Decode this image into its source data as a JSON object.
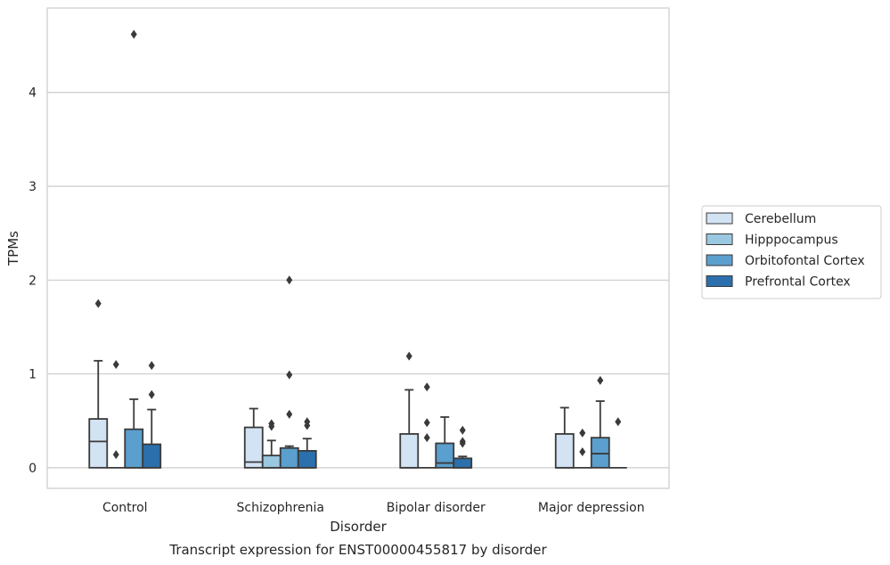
{
  "chart_data": {
    "type": "box",
    "caption": "Transcript expression for ENST00000455817 by disorder",
    "xlabel": "Disorder",
    "ylabel": "TPMs",
    "ylim": [
      -0.22,
      4.9
    ],
    "yticks": [
      0,
      1,
      2,
      3,
      4
    ],
    "grid": "horizontal",
    "legend_position": "right",
    "categories": [
      "Control",
      "Schizophrenia",
      "Bipolar disorder",
      "Major depression"
    ],
    "series": [
      {
        "name": "Cerebellum",
        "color": "#d2e3f3",
        "boxes": [
          {
            "q1": 0,
            "median": 0.28,
            "q3": 0.52,
            "whisker_low": 0,
            "whisker_high": 1.14,
            "outliers": [
              1.75
            ]
          },
          {
            "q1": 0,
            "median": 0.06,
            "q3": 0.43,
            "whisker_low": 0,
            "whisker_high": 0.63,
            "outliers": []
          },
          {
            "q1": 0,
            "median": 0,
            "q3": 0.36,
            "whisker_low": 0,
            "whisker_high": 0.83,
            "outliers": [
              1.19
            ]
          },
          {
            "q1": 0,
            "median": 0,
            "q3": 0.36,
            "whisker_low": 0,
            "whisker_high": 0.64,
            "outliers": []
          }
        ]
      },
      {
        "name": "Hipppocampus",
        "color": "#9ac8e0",
        "boxes": [
          {
            "q1": 0,
            "median": 0,
            "q3": 0,
            "whisker_low": 0,
            "whisker_high": 0,
            "outliers": [
              0.14,
              1.1
            ]
          },
          {
            "q1": 0,
            "median": 0,
            "q3": 0.13,
            "whisker_low": 0,
            "whisker_high": 0.29,
            "outliers": [
              0.44,
              0.47
            ]
          },
          {
            "q1": 0,
            "median": 0,
            "q3": 0,
            "whisker_low": 0,
            "whisker_high": 0,
            "outliers": [
              0.32,
              0.48,
              0.86
            ]
          },
          {
            "q1": 0,
            "median": 0,
            "q3": 0,
            "whisker_low": 0,
            "whisker_high": 0,
            "outliers": [
              0.17,
              0.37
            ]
          }
        ]
      },
      {
        "name": "Orbitofontal Cortex",
        "color": "#5a9fcd",
        "boxes": [
          {
            "q1": 0,
            "median": 0,
            "q3": 0.41,
            "whisker_low": 0,
            "whisker_high": 0.73,
            "outliers": [
              4.62
            ]
          },
          {
            "q1": 0,
            "median": 0,
            "q3": 0.21,
            "whisker_low": 0,
            "whisker_high": 0.23,
            "outliers": [
              0.57,
              0.99,
              2.0
            ]
          },
          {
            "q1": 0,
            "median": 0.05,
            "q3": 0.26,
            "whisker_low": 0,
            "whisker_high": 0.54,
            "outliers": []
          },
          {
            "q1": 0,
            "median": 0.15,
            "q3": 0.32,
            "whisker_low": 0,
            "whisker_high": 0.71,
            "outliers": [
              0.93
            ]
          }
        ]
      },
      {
        "name": "Prefrontal Cortex",
        "color": "#2c6fad",
        "boxes": [
          {
            "q1": 0,
            "median": 0,
            "q3": 0.25,
            "whisker_low": 0,
            "whisker_high": 0.62,
            "outliers": [
              0.78,
              1.09
            ]
          },
          {
            "q1": 0,
            "median": 0,
            "q3": 0.18,
            "whisker_low": 0,
            "whisker_high": 0.31,
            "outliers": [
              0.45,
              0.49
            ]
          },
          {
            "q1": 0,
            "median": 0,
            "q3": 0.1,
            "whisker_low": 0,
            "whisker_high": 0.12,
            "outliers": [
              0.26,
              0.28,
              0.4
            ]
          },
          {
            "q1": 0,
            "median": 0,
            "q3": 0,
            "whisker_low": 0,
            "whisker_high": 0,
            "outliers": [
              0.49
            ]
          }
        ]
      }
    ]
  }
}
